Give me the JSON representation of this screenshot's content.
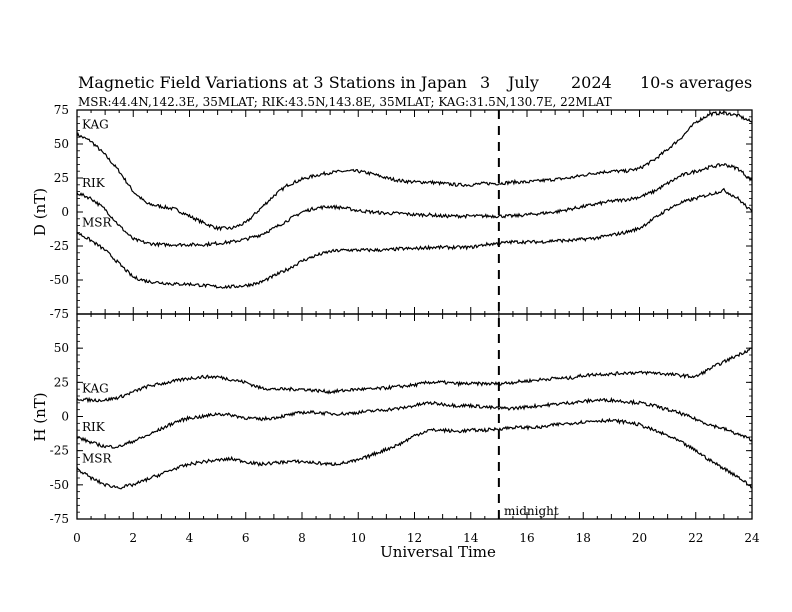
{
  "chart_data": {
    "type": "line",
    "title": "Magnetic Field Variations at 3 Stations in Japan",
    "date_day": "3",
    "date_month": "July",
    "date_year": "2024",
    "averaging": "10-s averages",
    "subtitle": "MSR:44.4N,142.3E, 35MLAT;  RIK:43.5N,143.8E, 35MLAT;  KAG:31.5N,130.7E, 22MLAT",
    "xlabel": "Universal Time",
    "xlim": [
      0,
      24
    ],
    "x_ticks": [
      0,
      2,
      4,
      6,
      8,
      10,
      12,
      14,
      16,
      18,
      20,
      22,
      24
    ],
    "annotation": {
      "text": "midnight",
      "x": 15,
      "line_style": "dashed"
    },
    "grid": false,
    "panels": [
      {
        "ylabel": "D (nT)",
        "ylim": [
          -75,
          75
        ],
        "y_ticks": [
          75,
          50,
          25,
          0,
          -25,
          -50,
          -75
        ],
        "series": [
          {
            "name": "KAG",
            "x": [
              0,
              0.5,
              1,
              1.5,
              2,
              2.5,
              3,
              3.5,
              4,
              4.5,
              5,
              5.5,
              6,
              6.5,
              7,
              7.5,
              8,
              8.5,
              9,
              9.5,
              10,
              10.5,
              11,
              11.5,
              12,
              12.5,
              13,
              13.5,
              14,
              14.5,
              15,
              15.5,
              16,
              16.5,
              17,
              17.5,
              18,
              18.5,
              19,
              19.5,
              20,
              20.5,
              21,
              21.5,
              22,
              22.5,
              23,
              23.5,
              24
            ],
            "y": [
              57,
              52,
              42,
              30,
              15,
              6,
              4,
              2,
              -3,
              -8,
              -12,
              -12,
              -8,
              2,
              12,
              20,
              24,
              27,
              29,
              30,
              30,
              28,
              25,
              23,
              22,
              22,
              21,
              20,
              20,
              21,
              21,
              22,
              22,
              23,
              24,
              25,
              27,
              29,
              30,
              30,
              32,
              38,
              46,
              55,
              66,
              72,
              73,
              71,
              66
            ]
          },
          {
            "name": "RIK",
            "x": [
              0,
              0.5,
              1,
              1.5,
              2,
              2.5,
              3,
              3.5,
              4,
              4.5,
              5,
              5.5,
              6,
              6.5,
              7,
              7.5,
              8,
              8.5,
              9,
              9.5,
              10,
              10.5,
              11,
              11.5,
              12,
              12.5,
              13,
              13.5,
              14,
              14.5,
              15,
              15.5,
              16,
              16.5,
              17,
              17.5,
              18,
              18.5,
              19,
              19.5,
              20,
              20.5,
              21,
              21.5,
              22,
              22.5,
              23,
              23.5,
              24
            ],
            "y": [
              14,
              10,
              2,
              -10,
              -20,
              -23,
              -24,
              -24,
              -24,
              -24,
              -23,
              -22,
              -20,
              -17,
              -12,
              -6,
              0,
              3,
              4,
              3,
              1,
              0,
              -1,
              -1,
              -2,
              -2,
              -3,
              -3,
              -3,
              -3,
              -3,
              -3,
              -2,
              -1,
              0,
              2,
              4,
              6,
              8,
              9,
              11,
              15,
              21,
              27,
              30,
              33,
              35,
              32,
              23
            ]
          },
          {
            "name": "MSR",
            "x": [
              0,
              0.5,
              1,
              1.5,
              2,
              2.5,
              3,
              3.5,
              4,
              4.5,
              5,
              5.5,
              6,
              6.5,
              7,
              7.5,
              8,
              8.5,
              9,
              9.5,
              10,
              10.5,
              11,
              11.5,
              12,
              12.5,
              13,
              13.5,
              14,
              14.5,
              15,
              15.5,
              16,
              16.5,
              17,
              17.5,
              18,
              18.5,
              19,
              19.5,
              20,
              20.5,
              21,
              21.5,
              22,
              22.5,
              23,
              23.5,
              24
            ],
            "y": [
              -15,
              -21,
              -28,
              -38,
              -48,
              -51,
              -52,
              -53,
              -53,
              -54,
              -55,
              -55,
              -54,
              -52,
              -47,
              -42,
              -36,
              -32,
              -29,
              -28,
              -28,
              -28,
              -28,
              -27,
              -27,
              -26,
              -26,
              -26,
              -26,
              -24,
              -23,
              -22,
              -22,
              -22,
              -21,
              -21,
              -20,
              -19,
              -17,
              -15,
              -12,
              -5,
              2,
              7,
              10,
              13,
              16,
              10,
              0
            ]
          }
        ]
      },
      {
        "ylabel": "H (nT)",
        "ylim": [
          -75,
          75
        ],
        "y_ticks": [
          50,
          25,
          0,
          -25,
          -50,
          -75
        ],
        "series": [
          {
            "name": "KAG",
            "x": [
              0,
              0.5,
              1,
              1.5,
              2,
              2.5,
              3,
              3.5,
              4,
              4.5,
              5,
              5.5,
              6,
              6.5,
              7,
              7.5,
              8,
              8.5,
              9,
              9.5,
              10,
              10.5,
              11,
              11.5,
              12,
              12.5,
              13,
              13.5,
              14,
              14.5,
              15,
              15.5,
              16,
              16.5,
              17,
              17.5,
              18,
              18.5,
              19,
              19.5,
              20,
              20.5,
              21,
              21.5,
              22,
              22.5,
              23,
              23.5,
              24
            ],
            "y": [
              13,
              12,
              12,
              14,
              18,
              22,
              24,
              26,
              28,
              29,
              29,
              27,
              25,
              21,
              20,
              20,
              20,
              19,
              18,
              19,
              20,
              20,
              21,
              22,
              23,
              25,
              25,
              24,
              24,
              24,
              24,
              25,
              26,
              27,
              28,
              28,
              30,
              31,
              31,
              32,
              32,
              32,
              31,
              30,
              29,
              35,
              40,
              45,
              50
            ]
          },
          {
            "name": "RIK",
            "x": [
              0,
              0.5,
              1,
              1.5,
              2,
              2.5,
              3,
              3.5,
              4,
              4.5,
              5,
              5.5,
              6,
              6.5,
              7,
              7.5,
              8,
              8.5,
              9,
              9.5,
              10,
              10.5,
              11,
              11.5,
              12,
              12.5,
              13,
              13.5,
              14,
              14.5,
              15,
              15.5,
              16,
              16.5,
              17,
              17.5,
              18,
              18.5,
              19,
              19.5,
              20,
              20.5,
              21,
              21.5,
              22,
              22.5,
              23,
              23.5,
              24
            ],
            "y": [
              -15,
              -19,
              -22,
              -22,
              -18,
              -14,
              -9,
              -4,
              -1,
              0,
              2,
              1,
              -1,
              -2,
              -1,
              1,
              3,
              3,
              2,
              2,
              3,
              4,
              5,
              6,
              8,
              10,
              9,
              8,
              8,
              7,
              6,
              6,
              7,
              8,
              9,
              10,
              11,
              12,
              12,
              11,
              10,
              8,
              5,
              2,
              -2,
              -6,
              -9,
              -13,
              -17
            ]
          },
          {
            "name": "MSR",
            "x": [
              0,
              0.5,
              1,
              1.5,
              2,
              2.5,
              3,
              3.5,
              4,
              4.5,
              5,
              5.5,
              6,
              6.5,
              7,
              7.5,
              8,
              8.5,
              9,
              9.5,
              10,
              10.5,
              11,
              11.5,
              12,
              12.5,
              13,
              13.5,
              14,
              14.5,
              15,
              15.5,
              16,
              16.5,
              17,
              17.5,
              18,
              18.5,
              19,
              19.5,
              20,
              20.5,
              21,
              21.5,
              22,
              22.5,
              23,
              23.5,
              24
            ],
            "y": [
              -38,
              -45,
              -50,
              -52,
              -50,
              -46,
              -42,
              -38,
              -35,
              -33,
              -32,
              -31,
              -33,
              -35,
              -34,
              -33,
              -33,
              -34,
              -35,
              -34,
              -32,
              -28,
              -24,
              -20,
              -14,
              -10,
              -10,
              -11,
              -10,
              -10,
              -9,
              -8,
              -8,
              -8,
              -6,
              -5,
              -4,
              -3,
              -3,
              -4,
              -6,
              -10,
              -14,
              -19,
              -25,
              -32,
              -38,
              -44,
              -52
            ]
          }
        ]
      }
    ]
  }
}
